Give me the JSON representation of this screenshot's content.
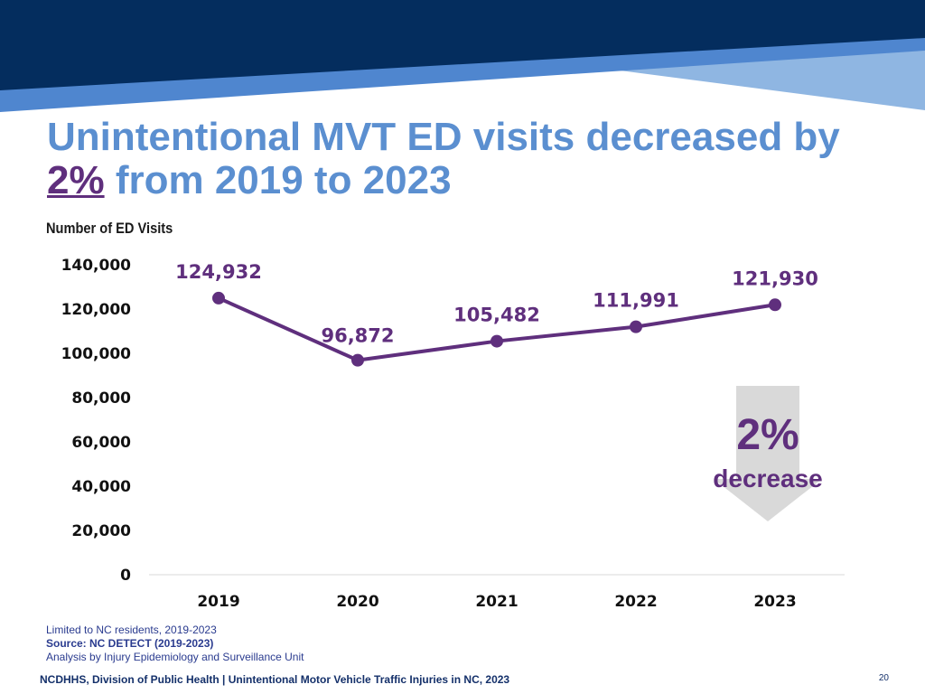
{
  "colors": {
    "navy": "#042d5e",
    "blue": "#4f86cf",
    "light_blue": "#8fb6e2",
    "title_blue": "#5b8fd0",
    "purple": "#5f2f7d",
    "arrow_gray": "#d9d9d9"
  },
  "title": {
    "line1": "Unintentional MVT ED visits decreased by",
    "percent": "2%",
    "line2_rest": " from 2019 to 2023"
  },
  "y_axis_title": "Number of ED Visits",
  "chart_data": {
    "type": "line",
    "title": "Unintentional MVT ED visits decreased by 2% from 2019 to 2023",
    "xlabel": "",
    "ylabel": "Number of ED Visits",
    "categories": [
      "2019",
      "2020",
      "2021",
      "2022",
      "2023"
    ],
    "series": [
      {
        "name": "ED Visits",
        "values": [
          124932,
          96872,
          105482,
          111991,
          121930
        ]
      }
    ],
    "data_labels": [
      "124,932",
      "96,872",
      "105,482",
      "111,991",
      "121,930"
    ],
    "ylim": [
      0,
      140000
    ],
    "yticks": [
      0,
      20000,
      40000,
      60000,
      80000,
      100000,
      120000,
      140000
    ],
    "ytick_labels": [
      "0",
      "20,000",
      "40,000",
      "60,000",
      "80,000",
      "100,000",
      "120,000",
      "140,000"
    ],
    "grid": false,
    "annotation": {
      "big": "2%",
      "small": "decrease"
    }
  },
  "notes": {
    "line1": "Limited to NC residents, 2019-2023",
    "line2": "Source: NC DETECT (2019-2023)",
    "line3": "Analysis by Injury Epidemiology and Surveillance Unit"
  },
  "footer": "NCDHHS, Division of Public Health | Unintentional Motor Vehicle Traffic Injuries in NC, 2023",
  "page_number": "20"
}
